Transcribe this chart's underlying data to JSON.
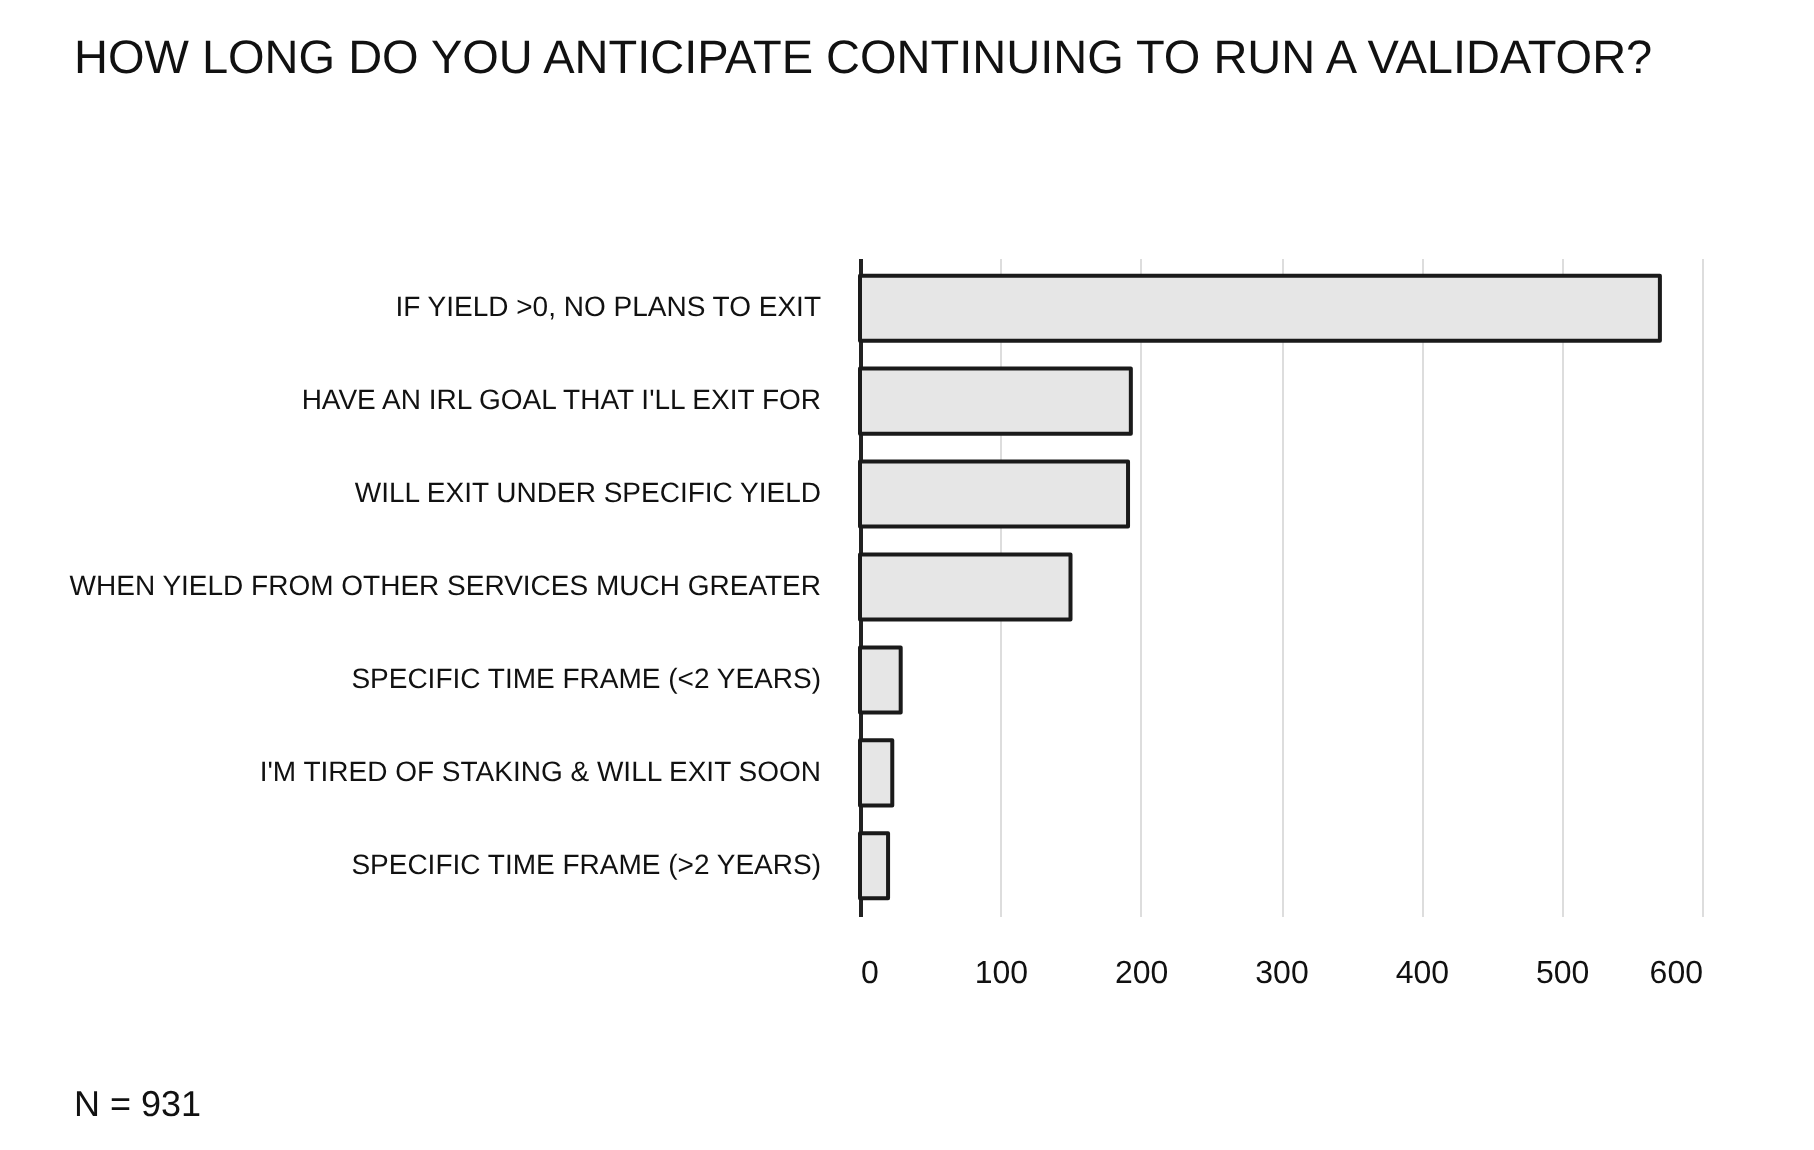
{
  "chart_data": {
    "type": "bar",
    "orientation": "horizontal",
    "title": "HOW LONG DO YOU ANTICIPATE CONTINUING TO RUN A VALIDATOR?",
    "categories": [
      "IF YIELD >0, NO PLANS TO EXIT",
      "HAVE AN IRL GOAL THAT I'LL EXIT FOR",
      "WILL EXIT UNDER SPECIFIC YIELD",
      "WHEN YIELD FROM OTHER SERVICES MUCH GREATER",
      "SPECIFIC TIME FRAME (<2 YEARS)",
      "I'M TIRED OF STAKING & WILL EXIT SOON",
      "SPECIFIC TIME FRAME (>2 YEARS)"
    ],
    "values": [
      570,
      193,
      191,
      150,
      29,
      23,
      20
    ],
    "color": "#e6e6e6",
    "xlim": [
      0,
      600
    ],
    "xticks": [
      0,
      100,
      200,
      300,
      400,
      500,
      600
    ],
    "grid": "x",
    "annotations": [
      "N = 931"
    ]
  }
}
